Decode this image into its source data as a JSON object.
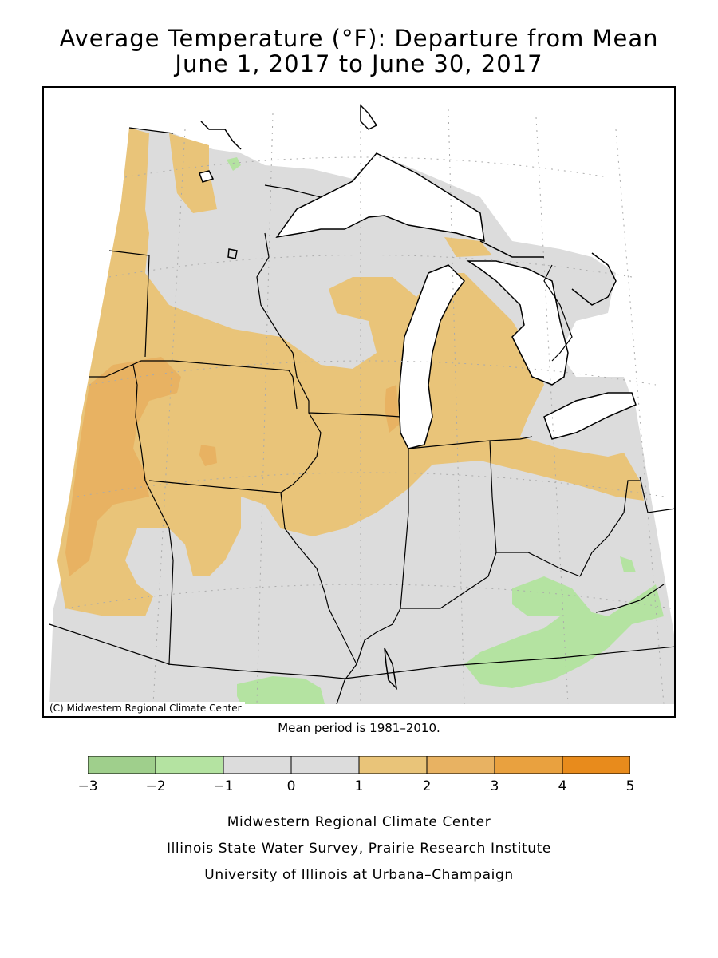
{
  "title": {
    "line1": "Average Temperature (°F): Departure from Mean",
    "line2": "June 1, 2017 to June 30, 2017"
  },
  "map": {
    "credit": "(C) Midwestern Regional Climate Center",
    "region": "Midwest US (MN, IA, MO, WI, IL, MI, IN, OH, KY)",
    "land_color": "#dcdcdc",
    "water_color": "#ffffff"
  },
  "mean_period": "Mean period is 1981–2010.",
  "legend": {
    "bins": [
      {
        "from": -3,
        "to": -2,
        "color": "#9fcf8c"
      },
      {
        "from": -2,
        "to": -1,
        "color": "#b4e3a1"
      },
      {
        "from": -1,
        "to": 0,
        "color": "#dcdcdc"
      },
      {
        "from": 0,
        "to": 1,
        "color": "#dcdcdc"
      },
      {
        "from": 1,
        "to": 2,
        "color": "#e9c479"
      },
      {
        "from": 2,
        "to": 3,
        "color": "#e8b262"
      },
      {
        "from": 3,
        "to": 4,
        "color": "#e9a13f"
      },
      {
        "from": 4,
        "to": 5,
        "color": "#e88b1c"
      }
    ],
    "ticks": [
      "−3",
      "−2",
      "−1",
      "0",
      "1",
      "2",
      "3",
      "4",
      "5"
    ]
  },
  "footer": {
    "line1": "Midwestern Regional Climate Center",
    "line2": "Illinois State Water Survey, Prairie Research Institute",
    "line3": "University of Illinois at Urbana–Champaign"
  }
}
